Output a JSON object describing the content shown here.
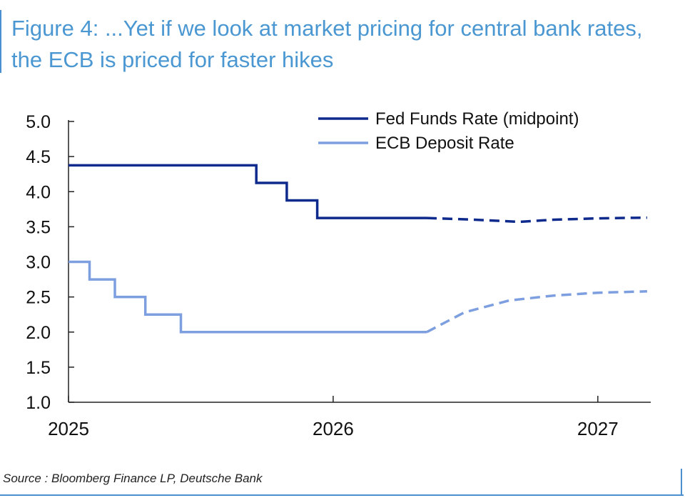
{
  "title": "Figure 4: ...Yet if we look at market pricing for central bank rates, the ECB is priced for faster hikes",
  "source": "Source : Bloomberg Finance LP, Deutsche Bank",
  "colors": {
    "title": "#4a97d2",
    "frame": "#4a90d0",
    "fed": "#0e2a8c",
    "ecb": "#7d9fe0"
  },
  "chart_data": {
    "type": "line",
    "title": "Figure 4: ...Yet if we look at market pricing for central bank rates, the ECB is priced for faster hikes",
    "xlabel": "",
    "ylabel": "",
    "xlim": [
      "2025-01-01",
      "2027-03-15"
    ],
    "ylim": [
      1.0,
      5.0
    ],
    "y_ticks": [
      "5.0",
      "4.5",
      "4.0",
      "3.5",
      "3.0",
      "2.5",
      "2.0",
      "1.5",
      "1.0"
    ],
    "x_ticks": [
      {
        "label": "2025",
        "date": "2025-01-01"
      },
      {
        "label": "2026",
        "date": "2026-01-01"
      },
      {
        "label": "2027",
        "date": "2027-01-01"
      }
    ],
    "grid": false,
    "legend_position": "top-right",
    "series": [
      {
        "name": "Fed Funds Rate (midpoint)",
        "color": "#0e2a8c",
        "realized": [
          [
            "2025-01-01",
            4.375
          ],
          [
            "2025-09-17",
            4.375
          ],
          [
            "2025-09-17",
            4.125
          ],
          [
            "2025-10-29",
            4.125
          ],
          [
            "2025-10-29",
            3.875
          ],
          [
            "2025-12-10",
            3.875
          ],
          [
            "2025-12-10",
            3.625
          ],
          [
            "2026-05-10",
            3.625
          ]
        ],
        "market_priced": [
          [
            "2026-05-10",
            3.625
          ],
          [
            "2026-07-15",
            3.6
          ],
          [
            "2026-09-15",
            3.57
          ],
          [
            "2026-11-01",
            3.6
          ],
          [
            "2027-01-01",
            3.62
          ],
          [
            "2027-03-10",
            3.63
          ]
        ]
      },
      {
        "name": "ECB Deposit Rate",
        "color": "#7d9fe0",
        "realized": [
          [
            "2025-01-01",
            3.0
          ],
          [
            "2025-01-30",
            3.0
          ],
          [
            "2025-01-30",
            2.75
          ],
          [
            "2025-03-06",
            2.75
          ],
          [
            "2025-03-06",
            2.5
          ],
          [
            "2025-04-17",
            2.5
          ],
          [
            "2025-04-17",
            2.25
          ],
          [
            "2025-06-05",
            2.25
          ],
          [
            "2025-06-05",
            2.0
          ],
          [
            "2026-05-10",
            2.0
          ]
        ],
        "market_priced": [
          [
            "2026-05-10",
            2.0
          ],
          [
            "2026-07-01",
            2.28
          ],
          [
            "2026-09-01",
            2.45
          ],
          [
            "2026-11-01",
            2.52
          ],
          [
            "2027-01-01",
            2.56
          ],
          [
            "2027-03-10",
            2.58
          ]
        ]
      }
    ]
  }
}
